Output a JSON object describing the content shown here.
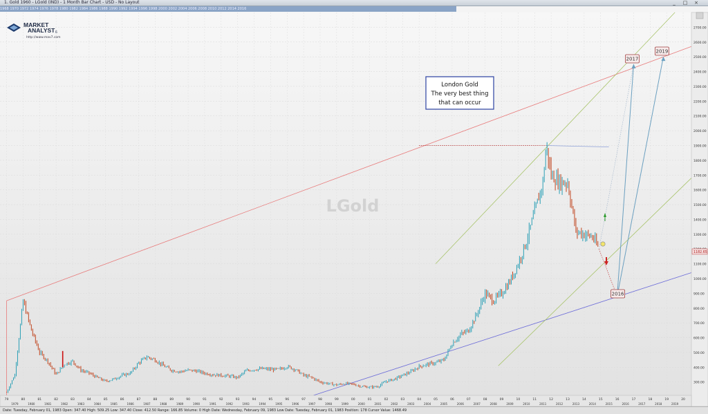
{
  "window": {
    "title": "1. Gold 1960 - LGold (IND) - 1 Month Bar Chart - USD - No Layout",
    "buttons": [
      "_",
      "□",
      "×"
    ],
    "year_strip": "1968 1970 1972 1974 1976 1978 1980 1982 1984 1986 1988 1990 1992 1994 1996 1998 2000 2002 2004 2006 2008 2010 2012 2014 2016"
  },
  "logo": {
    "line1": "MARKET",
    "line2": "ANALYST",
    "superscript": "6",
    "url": "http://www.mav7.com"
  },
  "watermark": "LGold",
  "annotation": {
    "title": "London Gold",
    "line2": "The very best thing",
    "line3": "that can occur"
  },
  "status_bar": "Date: Tuesday, February 01, 1983  Open: 347.40  High: 509.25  Low: 347.40  Close: 412.50  Range: 166.85  Volume: 0  High Date: Wednesday, February 09, 1983  Low Date: Tuesday, February 01, 1983  Position: 178  Cursor Value: 1468.49",
  "colors": {
    "price_up": "#2a9fb5",
    "price_down": "#c0441e",
    "upper_trend": "#e87a7a",
    "lower_trend": "#6a6ad8",
    "channel": "#a8c46a",
    "projection": "#6a9fc0",
    "badge_border": "#a04040"
  },
  "chart_data": {
    "type": "line",
    "series": [
      {
        "x": [
          1979.0,
          1979.5,
          1980.0,
          1980.5,
          1981.0,
          1981.5,
          1982.0,
          1982.5,
          1983.0,
          1983.5,
          1984.0,
          1984.5,
          1985.0,
          1985.5,
          1986.0,
          1986.5,
          1987.0,
          1987.5,
          1988.0,
          1988.5,
          1989.0,
          1989.5,
          1990.0,
          1990.5,
          1991.0,
          1991.5,
          1992.0,
          1992.5,
          1993.0,
          1993.5,
          1994.0,
          1994.5,
          1995.0,
          1995.5,
          1996.0,
          1996.5,
          1997.0,
          1997.5,
          1998.0,
          1998.5,
          1999.0,
          1999.5,
          2000.0,
          2000.5,
          2001.0,
          2001.5,
          2002.0,
          2002.5,
          2003.0,
          2003.5,
          2004.0,
          2004.5,
          2005.0,
          2005.5,
          2006.0,
          2006.5,
          2007.0,
          2007.5,
          2008.0,
          2008.5,
          2009.0,
          2009.5,
          2010.0,
          2010.5,
          2011.0,
          2011.5,
          2011.7,
          2012.0,
          2012.5,
          2013.0,
          2013.5,
          2014.0,
          2014.5,
          2014.9
        ],
        "y": [
          230,
          350,
          850,
          650,
          500,
          440,
          350,
          420,
          440,
          380,
          360,
          330,
          305,
          320,
          345,
          360,
          430,
          470,
          450,
          410,
          380,
          370,
          380,
          375,
          360,
          350,
          345,
          340,
          330,
          375,
          385,
          390,
          385,
          385,
          405,
          385,
          345,
          330,
          300,
          290,
          280,
          290,
          285,
          270,
          265,
          270,
          305,
          320,
          345,
          370,
          405,
          420,
          430,
          450,
          560,
          620,
          650,
          760,
          900,
          850,
          900,
          980,
          1100,
          1250,
          1450,
          1650,
          1900,
          1700,
          1650,
          1650,
          1320,
          1300,
          1280,
          1200
        ]
      }
    ],
    "xlim": [
      1978.6,
      2020.5
    ],
    "ylim": [
      210,
      2800
    ],
    "x_ticks": [
      "79",
      "80",
      "81",
      "82",
      "83",
      "84",
      "85",
      "86",
      "87",
      "88",
      "89",
      "90",
      "91",
      "92",
      "93",
      "94",
      "95",
      "96",
      "97",
      "98",
      "99",
      "00",
      "01",
      "02",
      "03",
      "04",
      "05",
      "06",
      "07",
      "08",
      "09",
      "10",
      "11",
      "12",
      "13",
      "14",
      "15",
      "16",
      "17",
      "18",
      "19",
      "20"
    ],
    "x_ticks_lower": [
      "1979",
      "1980",
      "1981",
      "1982",
      "1983",
      "1984",
      "1985",
      "1986",
      "1987",
      "1988",
      "1989",
      "1990",
      "1991",
      "1992",
      "1993",
      "1994",
      "1995",
      "1996",
      "1997",
      "1998",
      "1999",
      "2000",
      "2001",
      "2002",
      "2003",
      "2004",
      "2005",
      "2006",
      "2007",
      "2008",
      "2009",
      "2010",
      "2011",
      "2012",
      "2013",
      "2014",
      "2015",
      "2016",
      "2017",
      "2018",
      "2019"
    ],
    "y_ticks": [
      "300.00",
      "400.00",
      "500.00",
      "600.00",
      "700.00",
      "800.00",
      "900.00",
      "1000.00",
      "1100.00",
      "1200.00",
      "1300.00",
      "1400.00",
      "1500.00",
      "1600.00",
      "1700.00",
      "1800.00",
      "1900.00",
      "2000.00",
      "2100.00",
      "2200.00",
      "2300.00",
      "2400.00",
      "2500.00",
      "2600.00",
      "2700.00"
    ],
    "last_price_label": "1182.65",
    "last_price": 1182.65,
    "grid": true,
    "projections": [
      {
        "label": "2016",
        "x": 2016.0,
        "y": 880
      },
      {
        "label": "2017",
        "x": 2017.0,
        "y": 2450
      },
      {
        "label": "2019",
        "x": 2018.8,
        "y": 2500
      }
    ],
    "trendlines": {
      "upper": {
        "from": [
          1979.0,
          850
        ],
        "to": [
          2020.5,
          2570
        ]
      },
      "upper_start_price": 850,
      "lower": {
        "from": [
          1997.6,
          210
        ],
        "to": [
          2020.5,
          1040
        ]
      },
      "channel_upper": {
        "from": [
          2005.0,
          1100
        ],
        "to": [
          2019.5,
          2800
        ]
      },
      "channel_lower": {
        "from": [
          2008.8,
          410
        ],
        "to": [
          2020.5,
          1680
        ]
      },
      "resistance_price": 1900
    }
  }
}
